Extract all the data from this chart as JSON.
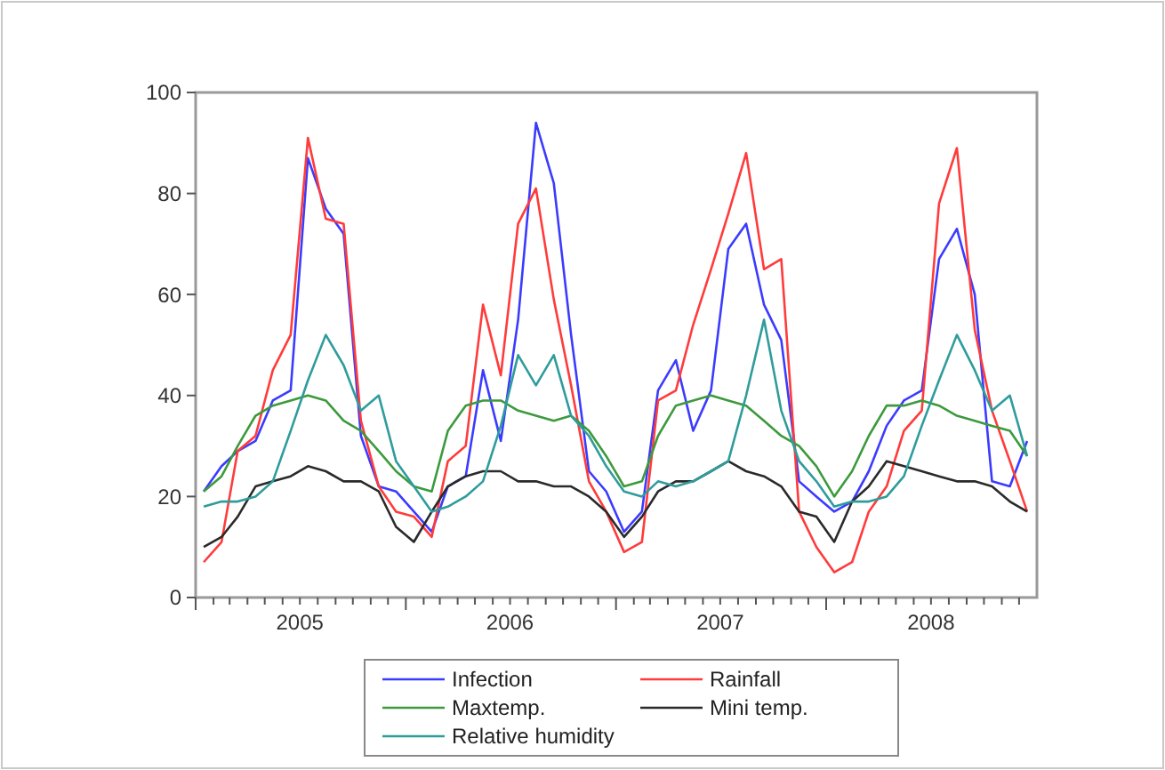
{
  "chart_data": {
    "type": "line",
    "x": [
      "2005-01-15",
      "2005-02-15",
      "2005-03-15",
      "2005-04-15",
      "2005-05-15",
      "2005-06-15",
      "2005-07-15",
      "2005-08-15",
      "2005-09-15",
      "2005-10-15",
      "2005-11-15",
      "2005-12-15",
      "2006-01-15",
      "2006-02-15",
      "2006-03-15",
      "2006-04-15",
      "2006-05-15",
      "2006-06-15",
      "2006-07-15",
      "2006-08-15",
      "2006-09-15",
      "2006-10-15",
      "2006-11-15",
      "2006-12-15",
      "2007-01-15",
      "2007-02-15",
      "2007-03-15",
      "2007-04-15",
      "2007-05-15",
      "2007-06-15",
      "2007-07-15",
      "2007-08-15",
      "2007-09-15",
      "2007-10-15",
      "2007-11-15",
      "2007-12-15",
      "2008-01-15",
      "2008-02-15",
      "2008-03-15",
      "2008-04-15",
      "2008-05-15",
      "2008-06-15",
      "2008-07-15",
      "2008-08-15",
      "2008-09-15",
      "2008-10-15",
      "2008-11-15",
      "2008-12-15"
    ],
    "series": [
      {
        "name": "Infection",
        "color": "#3b3bff",
        "values": [
          21,
          26,
          29,
          31,
          39,
          41,
          87,
          77,
          72,
          32,
          22,
          21,
          17,
          13,
          22,
          24,
          45,
          31,
          55,
          94,
          82,
          52,
          25,
          21,
          13,
          17,
          41,
          47,
          33,
          41,
          69,
          74,
          58,
          51,
          23,
          20,
          17,
          19,
          25,
          34,
          39,
          41,
          67,
          73,
          60,
          23,
          22,
          31
        ]
      },
      {
        "name": "Rainfall",
        "color": "#ff3b3b",
        "values": [
          7,
          11,
          29,
          32,
          45,
          52,
          91,
          75,
          74,
          35,
          22,
          17,
          16,
          12,
          27,
          30,
          58,
          44,
          74,
          81,
          59,
          42,
          23,
          17,
          9,
          11,
          39,
          41,
          54,
          65,
          76,
          88,
          65,
          67,
          17,
          10,
          5,
          7,
          17,
          22,
          33,
          37,
          78,
          89,
          53,
          37,
          27,
          17
        ]
      },
      {
        "name": "Maxtemp.",
        "color": "#3c9a3c",
        "values": [
          21,
          24,
          30,
          36,
          38,
          39,
          40,
          39,
          35,
          33,
          29,
          25,
          22,
          21,
          33,
          38,
          39,
          39,
          37,
          36,
          35,
          36,
          33,
          28,
          22,
          23,
          32,
          38,
          39,
          40,
          39,
          38,
          35,
          32,
          30,
          26,
          20,
          25,
          32,
          38,
          38,
          39,
          38,
          36,
          35,
          34,
          33,
          28
        ]
      },
      {
        "name": "Mini temp.",
        "color": "#2a2a2a",
        "values": [
          10,
          12,
          16,
          22,
          23,
          24,
          26,
          25,
          23,
          23,
          21,
          14,
          11,
          17,
          22,
          24,
          25,
          25,
          23,
          23,
          22,
          22,
          20,
          17,
          12,
          16,
          21,
          23,
          23,
          25,
          27,
          25,
          24,
          22,
          17,
          16,
          11,
          19,
          22,
          27,
          26,
          25,
          24,
          23,
          23,
          22,
          19,
          17
        ]
      },
      {
        "name": "Relative humidity",
        "color": "#2f9c9c",
        "values": [
          18,
          19,
          19,
          20,
          23,
          33,
          43,
          52,
          46,
          37,
          40,
          27,
          22,
          17,
          18,
          20,
          23,
          34,
          48,
          42,
          48,
          36,
          32,
          26,
          21,
          20,
          23,
          22,
          23,
          25,
          27,
          40,
          55,
          37,
          27,
          23,
          18,
          19,
          19,
          20,
          24,
          34,
          43,
          52,
          45,
          37,
          40,
          28
        ]
      }
    ],
    "xlim": [
      "2005-01-01",
      "2009-01-01"
    ],
    "xticks": [
      {
        "value": "2005-07-01",
        "label": "2005"
      },
      {
        "value": "2006-07-01",
        "label": "2006"
      },
      {
        "value": "2007-07-01",
        "label": "2007"
      },
      {
        "value": "2008-07-01",
        "label": "2008"
      }
    ],
    "ylim": [
      0,
      100
    ],
    "yticks": [
      0,
      20,
      40,
      60,
      80,
      100
    ],
    "grid": false,
    "legend": "bottom",
    "marker": "none",
    "line_style": "solid"
  }
}
